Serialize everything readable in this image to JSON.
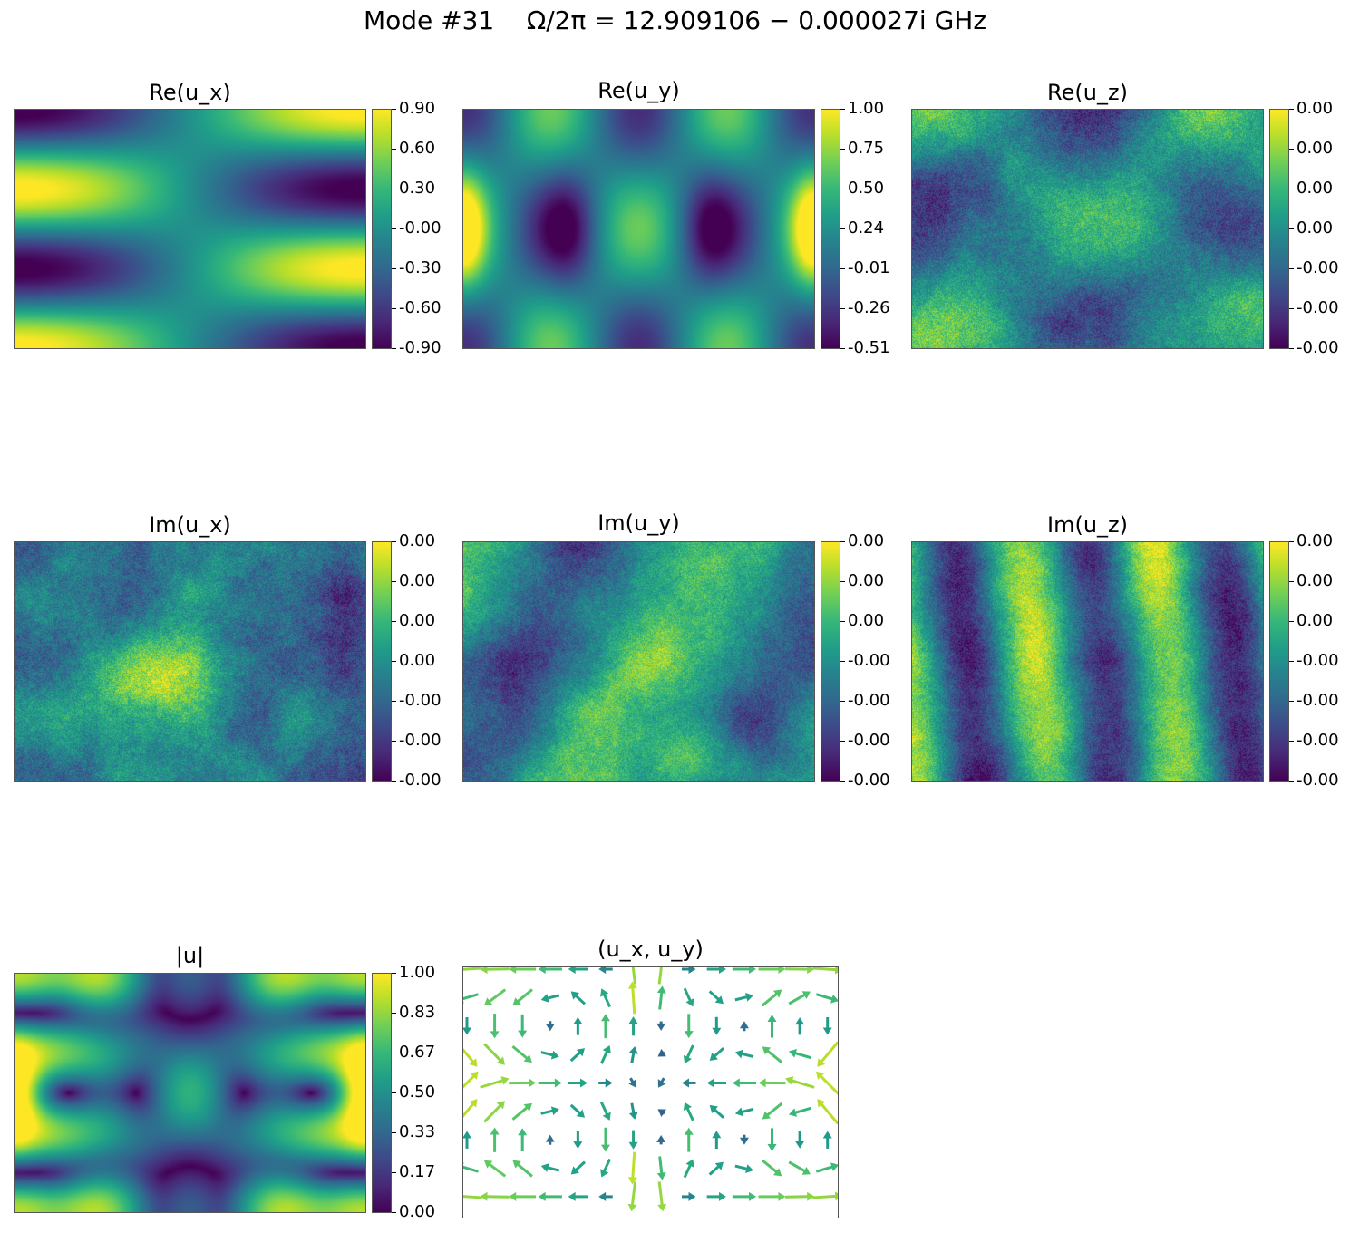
{
  "figure": {
    "suptitle": "Mode #31    Ω/2π = 12.909106 − 0.000027i GHz"
  },
  "colormap": {
    "name": "viridis",
    "stops": [
      "#440154",
      "#482878",
      "#3e4989",
      "#31688e",
      "#26828e",
      "#1f9e89",
      "#35b779",
      "#6ece58",
      "#b5de2b",
      "#fde725"
    ]
  },
  "chart_data": [
    {
      "id": "re_ux",
      "type": "heatmap",
      "title": "Re(u_x)",
      "pattern": "re_ux",
      "colorbar_ticks": [
        "0.90",
        "0.60",
        "0.30",
        "-0.00",
        "-0.30",
        "-0.60",
        "-0.90"
      ],
      "vmin": -0.9,
      "vmax": 0.9
    },
    {
      "id": "re_uy",
      "type": "heatmap",
      "title": "Re(u_y)",
      "pattern": "re_uy",
      "colorbar_ticks": [
        "1.00",
        "0.75",
        "0.50",
        "0.24",
        "-0.01",
        "-0.26",
        "-0.51"
      ],
      "vmin": -0.51,
      "vmax": 1.0
    },
    {
      "id": "re_uz",
      "type": "heatmap",
      "title": "Re(u_z)",
      "pattern": "re_uz",
      "colorbar_ticks": [
        "0.00",
        "0.00",
        "0.00",
        "0.00",
        "-0.00",
        "-0.00",
        "-0.00"
      ],
      "vmin": -0.0,
      "vmax": 0.0
    },
    {
      "id": "im_ux",
      "type": "heatmap",
      "title": "Im(u_x)",
      "pattern": "im_ux",
      "colorbar_ticks": [
        "0.00",
        "0.00",
        "0.00",
        "0.00",
        "-0.00",
        "-0.00",
        "-0.00"
      ],
      "vmin": -0.0,
      "vmax": 0.0
    },
    {
      "id": "im_uy",
      "type": "heatmap",
      "title": "Im(u_y)",
      "pattern": "im_uy",
      "colorbar_ticks": [
        "0.00",
        "0.00",
        "0.00",
        "-0.00",
        "-0.00",
        "-0.00",
        "-0.00"
      ],
      "vmin": -0.0,
      "vmax": 0.0
    },
    {
      "id": "im_uz",
      "type": "heatmap",
      "title": "Im(u_z)",
      "pattern": "im_uz",
      "colorbar_ticks": [
        "0.00",
        "0.00",
        "0.00",
        "-0.00",
        "-0.00",
        "-0.00",
        "-0.00"
      ],
      "vmin": -0.0,
      "vmax": 0.0
    },
    {
      "id": "abs_u",
      "type": "heatmap",
      "title": "|u|",
      "pattern": "abs_u",
      "colorbar_ticks": [
        "1.00",
        "0.83",
        "0.67",
        "0.50",
        "0.33",
        "0.17",
        "0.00"
      ],
      "vmin": 0.0,
      "vmax": 1.0
    },
    {
      "id": "quiver",
      "type": "quiver",
      "title": "(u_x, u_y)",
      "grid_cols": 14,
      "grid_rows": 9
    }
  ]
}
